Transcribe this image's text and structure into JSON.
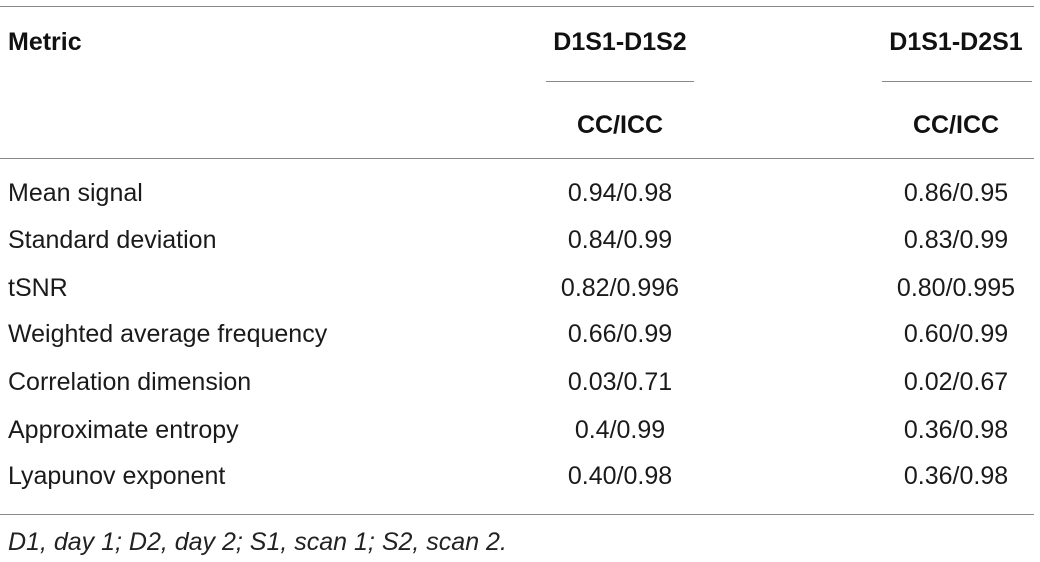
{
  "table": {
    "headers": {
      "metric": "Metric",
      "group1": "D1S1-D1S2",
      "group2": "D1S1-D2S1",
      "sub1": "CC/ICC",
      "sub2": "CC/ICC"
    },
    "rows": [
      {
        "metric": "Mean signal",
        "g1": "0.94/0.98",
        "g2": "0.86/0.95"
      },
      {
        "metric": "Standard deviation",
        "g1": "0.84/0.99",
        "g2": "0.83/0.99"
      },
      {
        "metric": "tSNR",
        "g1": "0.82/0.996",
        "g2": "0.80/0.995"
      },
      {
        "metric": "Weighted average frequency",
        "g1": "0.66/0.99",
        "g2": "0.60/0.99"
      },
      {
        "metric": "Correlation dimension",
        "g1": "0.03/0.71",
        "g2": "0.02/0.67"
      },
      {
        "metric": "Approximate entropy",
        "g1": "0.4/0.99",
        "g2": "0.36/0.98"
      },
      {
        "metric": "Lyapunov exponent",
        "g1": "0.40/0.98",
        "g2": "0.36/0.98"
      }
    ],
    "footnote": "D1, day 1; D2, day 2; S1, scan 1; S2, scan 2."
  }
}
